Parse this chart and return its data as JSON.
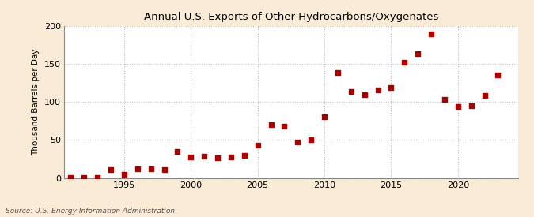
{
  "title": "Annual U.S. Exports of Other Hydrocarbons/Oxygenates",
  "ylabel": "Thousand Barrels per Day",
  "source": "Source: U.S. Energy Information Administration",
  "background_color": "#faebd7",
  "plot_background_color": "#ffffff",
  "marker_color": "#aa0000",
  "marker_size": 16,
  "marker_style": "s",
  "ylim": [
    0,
    200
  ],
  "yticks": [
    0,
    50,
    100,
    150,
    200
  ],
  "xticks": [
    1995,
    2000,
    2005,
    2010,
    2015,
    2020
  ],
  "grid_color": "#bbbbbb",
  "xlim": [
    1990.5,
    2024.5
  ],
  "years": [
    1991,
    1992,
    1993,
    1994,
    1995,
    1996,
    1997,
    1998,
    1999,
    2000,
    2001,
    2002,
    2003,
    2004,
    2005,
    2006,
    2007,
    2008,
    2009,
    2010,
    2011,
    2012,
    2013,
    2014,
    2015,
    2016,
    2017,
    2018,
    2019,
    2020,
    2021,
    2022,
    2023
  ],
  "values": [
    1,
    1,
    1,
    11,
    5,
    12,
    12,
    11,
    35,
    28,
    29,
    27,
    28,
    30,
    43,
    70,
    68,
    47,
    50,
    81,
    139,
    114,
    110,
    116,
    119,
    152,
    164,
    190,
    103,
    94,
    95,
    109,
    136
  ]
}
